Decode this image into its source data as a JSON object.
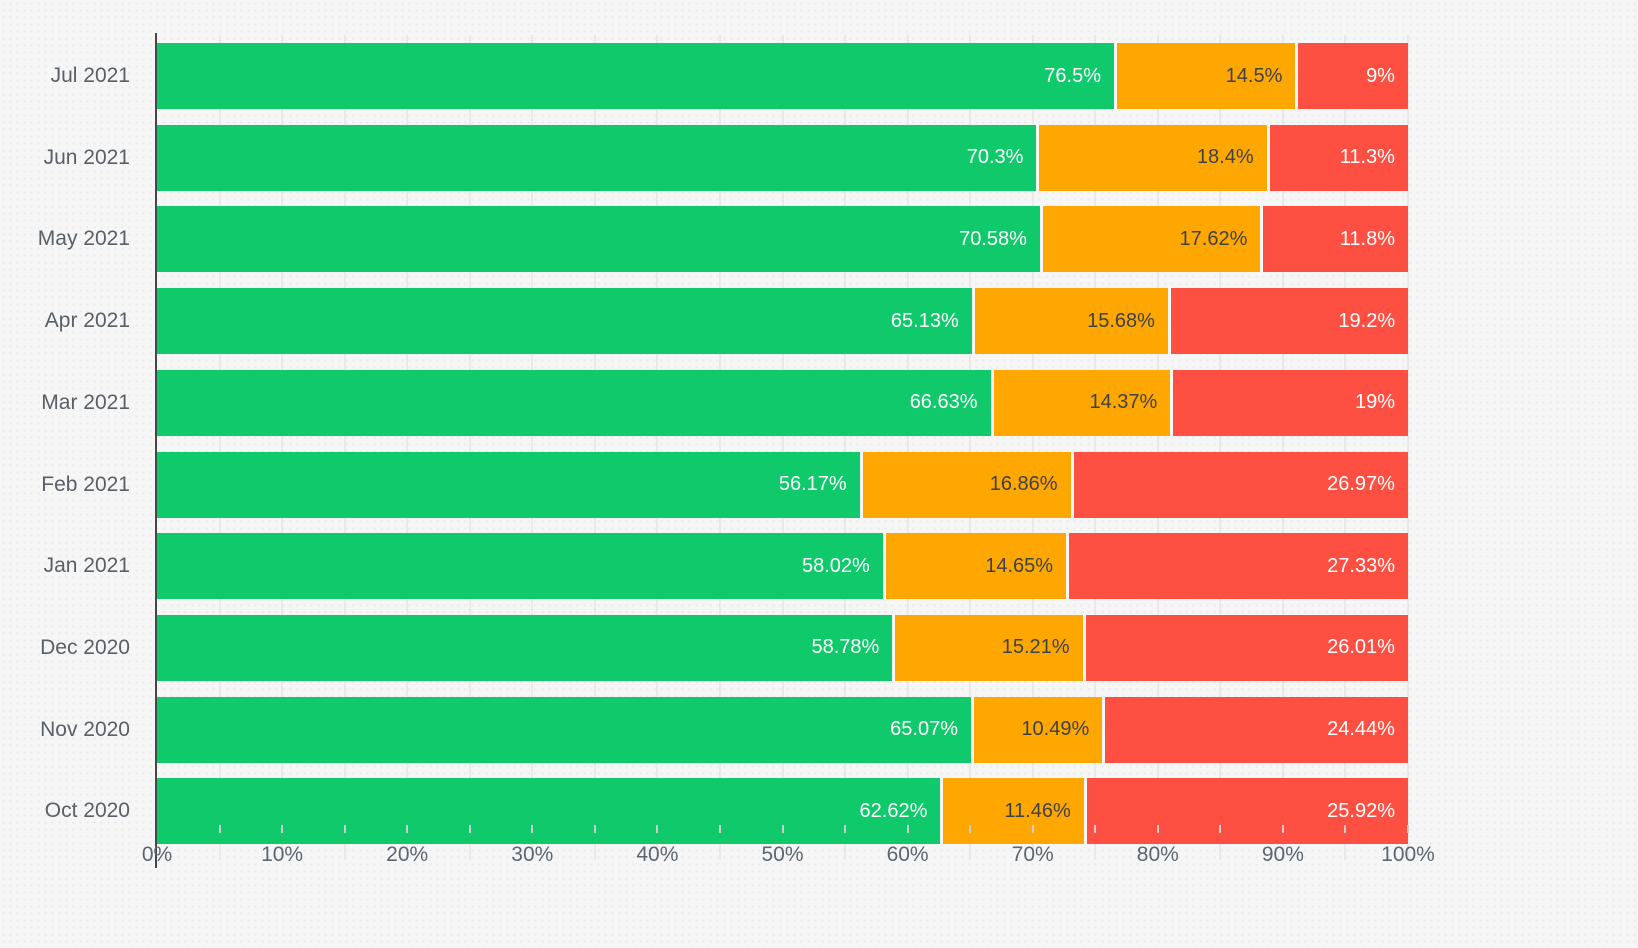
{
  "chart_data": {
    "type": "bar",
    "orientation": "horizontal",
    "stacked": true,
    "title": "",
    "xlabel": "",
    "ylabel": "",
    "xlim": [
      0,
      100
    ],
    "grid": true,
    "legend": false,
    "categories": [
      "Jul 2021",
      "Jun 2021",
      "May 2021",
      "Apr 2021",
      "Mar 2021",
      "Feb 2021",
      "Jan 2021",
      "Dec 2020",
      "Nov 2020",
      "Oct 2020"
    ],
    "series": [
      {
        "name": "green",
        "color": "#0fc96b",
        "label_color": "#ffffff",
        "values": [
          76.5,
          70.3,
          70.58,
          65.13,
          66.63,
          56.17,
          58.02,
          58.78,
          65.07,
          62.62
        ],
        "labels": [
          "76.5%",
          "70.3%",
          "70.58%",
          "65.13%",
          "66.63%",
          "56.17%",
          "58.02%",
          "58.78%",
          "65.07%",
          "62.62%"
        ]
      },
      {
        "name": "orange",
        "color": "#ffa701",
        "label_color": "#3f4245",
        "values": [
          14.5,
          18.4,
          17.62,
          15.68,
          14.37,
          16.86,
          14.65,
          15.21,
          10.49,
          11.46
        ],
        "labels": [
          "14.5%",
          "18.4%",
          "17.62%",
          "15.68%",
          "14.37%",
          "16.86%",
          "14.65%",
          "15.21%",
          "10.49%",
          "11.46%"
        ]
      },
      {
        "name": "red",
        "color": "#fd4f42",
        "label_color": "#ffffff",
        "values": [
          9,
          11.3,
          11.8,
          19.2,
          19,
          26.97,
          27.33,
          26.01,
          24.44,
          25.92
        ],
        "labels": [
          "9%",
          "11.3%",
          "11.8%",
          "19.2%",
          "19%",
          "26.97%",
          "27.33%",
          "26.01%",
          "24.44%",
          "25.92%"
        ]
      }
    ],
    "x_tick_labels": [
      "0%",
      "10%",
      "20%",
      "30%",
      "40%",
      "50%",
      "60%",
      "70%",
      "80%",
      "90%",
      "100%"
    ],
    "x_label_step": 10,
    "minor_tick_step": 5,
    "axis_color": "#474747",
    "grid_color": "#e9e9e9",
    "background_color": "#f6f6f6"
  }
}
